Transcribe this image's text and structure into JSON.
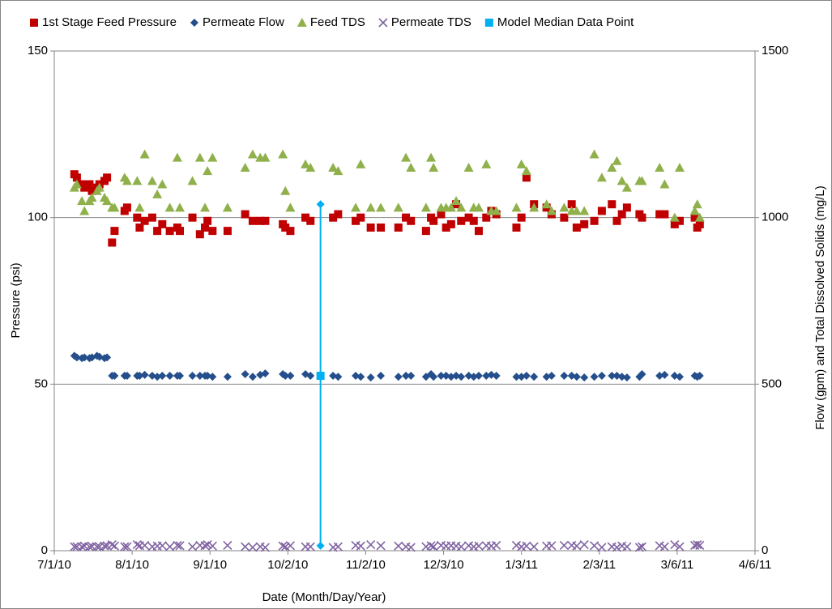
{
  "chart_data": {
    "type": "scatter",
    "x_label": "Date (Month/Day/Year)",
    "y_label": "Pressure (psi)",
    "y2_label": "Flow (gpm) and Total Dissolved  Solids (mg/L)",
    "xlim": [
      "7/1/10",
      "4/6/11"
    ],
    "xticks": [
      "7/1/10",
      "8/1/10",
      "9/1/10",
      "10/2/10",
      "11/2/10",
      "12/3/10",
      "1/3/11",
      "2/3/11",
      "3/6/11",
      "4/6/11"
    ],
    "ylim": [
      0,
      150
    ],
    "yticks": [
      0,
      50,
      100,
      150
    ],
    "y2lim": [
      0,
      1500
    ],
    "y2ticks": [
      0,
      500,
      1000,
      1500
    ],
    "grid": true,
    "legend": "top",
    "x": [
      "7/9/10",
      "7/10/10",
      "7/12/10",
      "7/13/10",
      "7/15/10",
      "7/16/10",
      "7/18/10",
      "7/19/10",
      "7/21/10",
      "7/22/10",
      "7/24/10",
      "7/25/10",
      "7/29/10",
      "7/30/10",
      "8/3/10",
      "8/4/10",
      "8/6/10",
      "8/9/10",
      "8/11/10",
      "8/13/10",
      "8/16/10",
      "8/19/10",
      "8/20/10",
      "8/25/10",
      "8/28/10",
      "8/30/10",
      "8/31/10",
      "9/2/10",
      "9/8/10",
      "9/15/10",
      "9/18/10",
      "9/21/10",
      "9/23/10",
      "9/30/10",
      "10/1/10",
      "10/3/10",
      "10/9/10",
      "10/11/10",
      "10/20/10",
      "10/22/10",
      "10/29/10",
      "10/31/10",
      "11/4/10",
      "11/8/10",
      "11/15/10",
      "11/18/10",
      "11/20/10",
      "11/26/10",
      "11/28/10",
      "11/29/10",
      "12/2/10",
      "12/4/10",
      "12/6/10",
      "12/8/10",
      "12/10/10",
      "12/13/10",
      "12/15/10",
      "12/17/10",
      "12/20/10",
      "12/22/10",
      "12/24/10",
      "1/1/11",
      "1/3/11",
      "1/5/11",
      "1/8/11",
      "1/13/11",
      "1/15/11",
      "1/20/11",
      "1/23/11",
      "1/25/11",
      "1/28/11",
      "2/1/11",
      "2/4/11",
      "2/8/11",
      "2/10/11",
      "2/12/11",
      "2/14/11",
      "2/19/11",
      "2/20/11",
      "2/27/11",
      "3/1/11",
      "3/5/11",
      "3/7/11",
      "3/13/11",
      "3/14/11",
      "3/15/11"
    ],
    "series": [
      {
        "name": "1st Stage Feed Pressure",
        "color": "#c00000",
        "marker": "square",
        "axis": "y",
        "values": [
          113,
          112,
          110,
          109,
          110,
          108,
          109,
          110,
          111,
          112,
          92.5,
          96,
          102,
          103,
          100,
          97,
          99,
          100,
          96,
          98,
          96,
          97,
          96,
          100,
          95,
          97,
          99,
          96,
          96,
          101,
          99,
          99,
          99,
          98,
          97,
          96,
          100,
          99,
          100,
          101,
          99,
          100,
          97,
          97,
          97,
          100,
          99,
          96,
          100,
          99,
          101,
          97,
          98,
          104,
          99,
          100,
          99,
          96,
          100,
          102,
          101,
          97,
          100,
          112,
          104,
          103,
          101,
          100,
          104,
          97,
          98,
          99,
          102,
          104,
          99,
          101,
          103,
          101,
          100,
          101,
          101,
          98,
          99,
          100,
          97,
          98
        ]
      },
      {
        "name": "Permeate Flow",
        "color": "#254f8c",
        "marker": "diamond",
        "axis": "y2",
        "values": [
          585,
          580,
          578,
          580,
          578,
          580,
          585,
          582,
          578,
          580,
          525,
          525,
          525,
          525,
          525,
          525,
          528,
          525,
          522,
          525,
          525,
          525,
          525,
          525,
          525,
          525,
          525,
          522,
          522,
          530,
          522,
          528,
          532,
          530,
          525,
          525,
          530,
          525,
          525,
          522,
          525,
          522,
          520,
          525,
          522,
          525,
          525,
          522,
          530,
          522,
          525,
          525,
          522,
          525,
          522,
          525,
          522,
          525,
          525,
          528,
          525,
          522,
          522,
          525,
          522,
          522,
          525,
          525,
          525,
          522,
          520,
          522,
          525,
          525,
          525,
          522,
          520,
          522,
          530,
          525,
          528,
          525,
          522,
          525,
          522,
          525
        ]
      },
      {
        "name": "Feed TDS",
        "color": "#8fb04a",
        "marker": "triangle",
        "axis": "y2",
        "values": [
          1090,
          1100,
          1050,
          1020,
          1050,
          1060,
          1080,
          1090,
          1060,
          1050,
          1030,
          1030,
          1120,
          1110,
          1110,
          1030,
          1190,
          1110,
          1070,
          1100,
          1030,
          1180,
          1030,
          1110,
          1180,
          1030,
          1140,
          1180,
          1030,
          1150,
          1190,
          1180,
          1180,
          1190,
          1080,
          1030,
          1160,
          1150,
          1150,
          1140,
          1030,
          1160,
          1030,
          1030,
          1030,
          1180,
          1150,
          1030,
          1180,
          1150,
          1030,
          1030,
          1030,
          1050,
          1030,
          1150,
          1030,
          1030,
          1160,
          1020,
          1020,
          1030,
          1160,
          1140,
          1030,
          1040,
          1020,
          1030,
          1020,
          1020,
          1020,
          1190,
          1120,
          1150,
          1170,
          1110,
          1090,
          1110,
          1110,
          1150,
          1100,
          1000,
          1150,
          1020,
          1040,
          1000
        ]
      },
      {
        "name": "Permeate TDS",
        "color": "#8064a2",
        "marker": "x",
        "axis": "y2",
        "values": [
          12,
          12,
          12,
          14,
          12,
          13,
          12,
          12,
          14,
          15,
          18,
          14,
          12,
          12,
          18,
          15,
          16,
          12,
          14,
          15,
          12,
          16,
          15,
          12,
          16,
          15,
          18,
          14,
          16,
          12,
          10,
          12,
          10,
          14,
          12,
          15,
          12,
          12,
          10,
          12,
          16,
          14,
          18,
          15,
          14,
          12,
          10,
          12,
          15,
          12,
          16,
          14,
          15,
          14,
          12,
          15,
          12,
          14,
          15,
          14,
          16,
          16,
          12,
          14,
          12,
          14,
          15,
          16,
          16,
          14,
          18,
          15,
          10,
          12,
          10,
          14,
          12,
          10,
          12,
          15,
          12,
          18,
          12,
          16,
          18,
          16
        ]
      }
    ],
    "median": {
      "name": "Model Median Data Point",
      "color": "#00b0f0",
      "axis": "y2",
      "x": "10/15/10",
      "values": [
        1040,
        525,
        15
      ],
      "markers": [
        "diamond",
        "square",
        "diamond"
      ]
    }
  }
}
